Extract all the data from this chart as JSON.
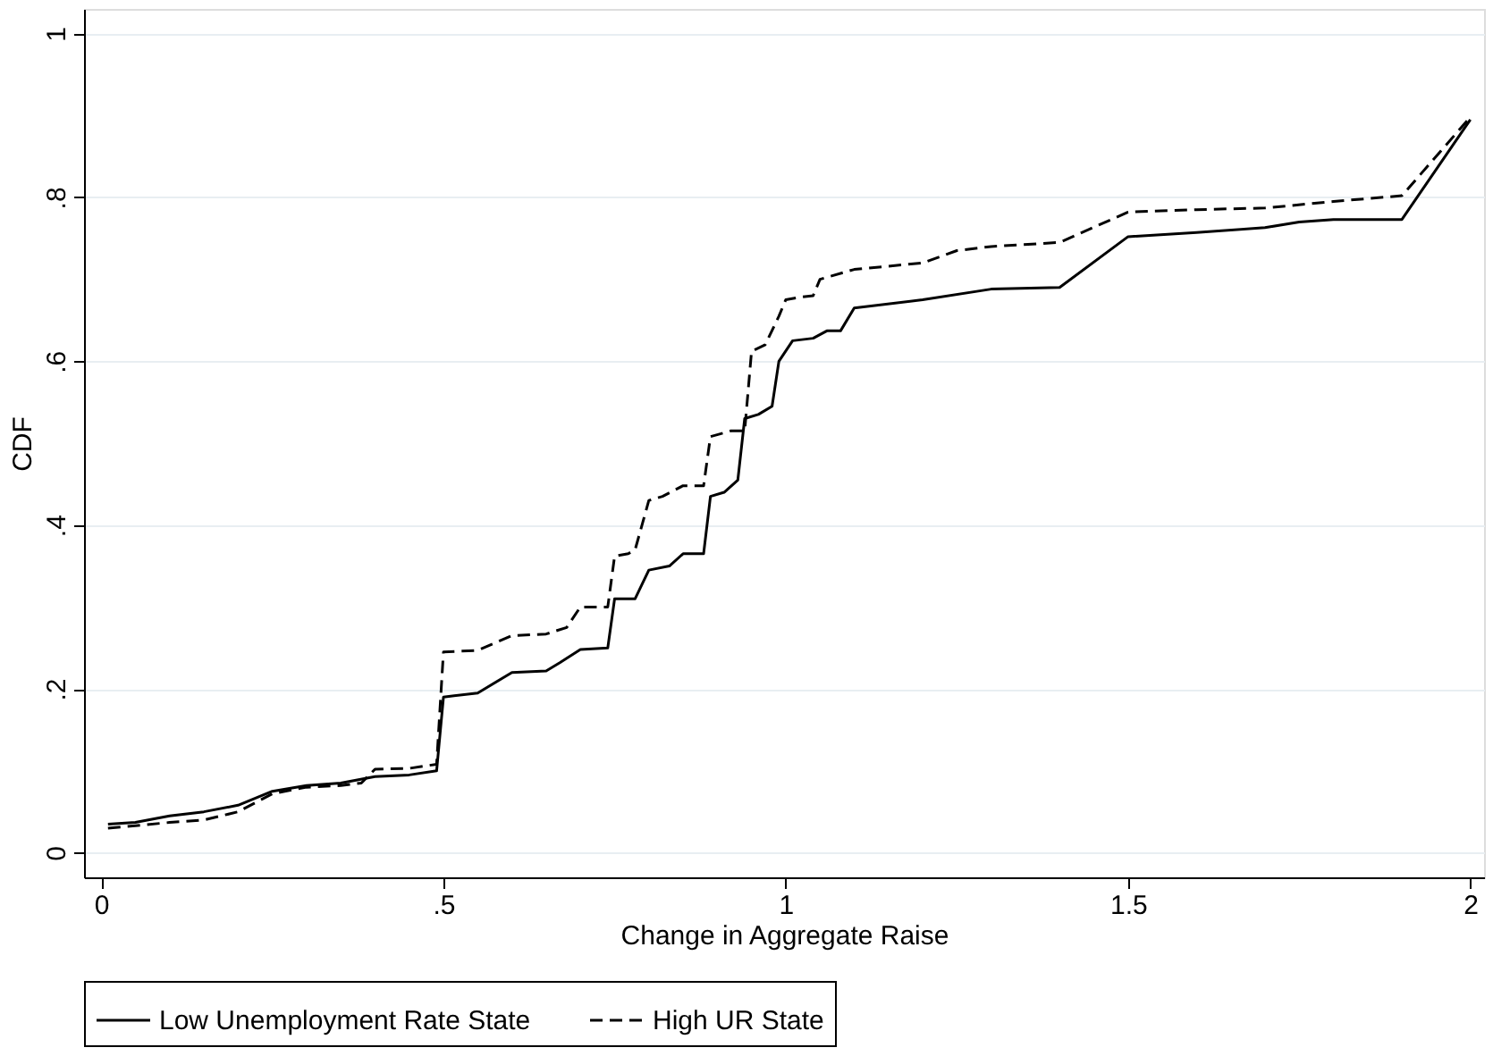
{
  "chart_data": {
    "type": "line",
    "xlabel": "Change in Aggregate Raise",
    "ylabel": "CDF",
    "xlim": [
      -0.025,
      2.02
    ],
    "ylim": [
      -0.03,
      1.03
    ],
    "xticks": [
      0,
      {
        "value": 0.5,
        "label": ".5"
      },
      1,
      1.5,
      2
    ],
    "yticks": [
      0,
      {
        "value": 0.2,
        "label": ".2"
      },
      {
        "value": 0.4,
        "label": ".4"
      },
      {
        "value": 0.6,
        "label": ".6"
      },
      {
        "value": 0.8,
        "label": ".8"
      },
      1
    ],
    "grid": "y",
    "legend": "bottom",
    "series": [
      {
        "name": "Low Unemployment Rate State",
        "color": "#000000",
        "line_style": "solid",
        "x": [
          0.01,
          0.05,
          0.1,
          0.15,
          0.2,
          0.25,
          0.3,
          0.35,
          0.4,
          0.45,
          0.49,
          0.5,
          0.55,
          0.6,
          0.65,
          0.67,
          0.7,
          0.74,
          0.75,
          0.78,
          0.8,
          0.83,
          0.85,
          0.88,
          0.89,
          0.91,
          0.93,
          0.94,
          0.96,
          0.98,
          0.99,
          1.01,
          1.04,
          1.06,
          1.08,
          1.1,
          1.2,
          1.3,
          1.4,
          1.5,
          1.6,
          1.7,
          1.75,
          1.8,
          1.9,
          2.0
        ],
        "values": [
          0.035,
          0.037,
          0.045,
          0.05,
          0.058,
          0.075,
          0.082,
          0.085,
          0.093,
          0.095,
          0.1,
          0.19,
          0.195,
          0.22,
          0.222,
          0.232,
          0.248,
          0.25,
          0.31,
          0.31,
          0.345,
          0.35,
          0.365,
          0.365,
          0.435,
          0.44,
          0.455,
          0.53,
          0.535,
          0.545,
          0.6,
          0.625,
          0.628,
          0.637,
          0.637,
          0.665,
          0.675,
          0.688,
          0.69,
          0.752,
          0.757,
          0.763,
          0.77,
          0.773,
          0.773,
          0.895
        ]
      },
      {
        "name": "High UR State",
        "color": "#000000",
        "line_style": "dashed",
        "x": [
          0.01,
          0.05,
          0.1,
          0.15,
          0.2,
          0.25,
          0.3,
          0.35,
          0.38,
          0.4,
          0.45,
          0.49,
          0.5,
          0.55,
          0.6,
          0.65,
          0.68,
          0.7,
          0.74,
          0.75,
          0.77,
          0.78,
          0.8,
          0.82,
          0.85,
          0.88,
          0.89,
          0.92,
          0.94,
          0.95,
          0.97,
          0.99,
          1.0,
          1.02,
          1.04,
          1.05,
          1.1,
          1.2,
          1.25,
          1.3,
          1.4,
          1.5,
          1.6,
          1.7,
          1.8,
          1.9,
          2.0
        ],
        "values": [
          0.03,
          0.033,
          0.037,
          0.04,
          0.05,
          0.072,
          0.08,
          0.082,
          0.085,
          0.102,
          0.103,
          0.108,
          0.245,
          0.247,
          0.265,
          0.267,
          0.275,
          0.3,
          0.3,
          0.362,
          0.365,
          0.37,
          0.43,
          0.435,
          0.448,
          0.448,
          0.508,
          0.515,
          0.515,
          0.612,
          0.62,
          0.655,
          0.675,
          0.678,
          0.68,
          0.7,
          0.712,
          0.72,
          0.735,
          0.74,
          0.745,
          0.782,
          0.785,
          0.787,
          0.795,
          0.802,
          0.898
        ]
      }
    ]
  }
}
